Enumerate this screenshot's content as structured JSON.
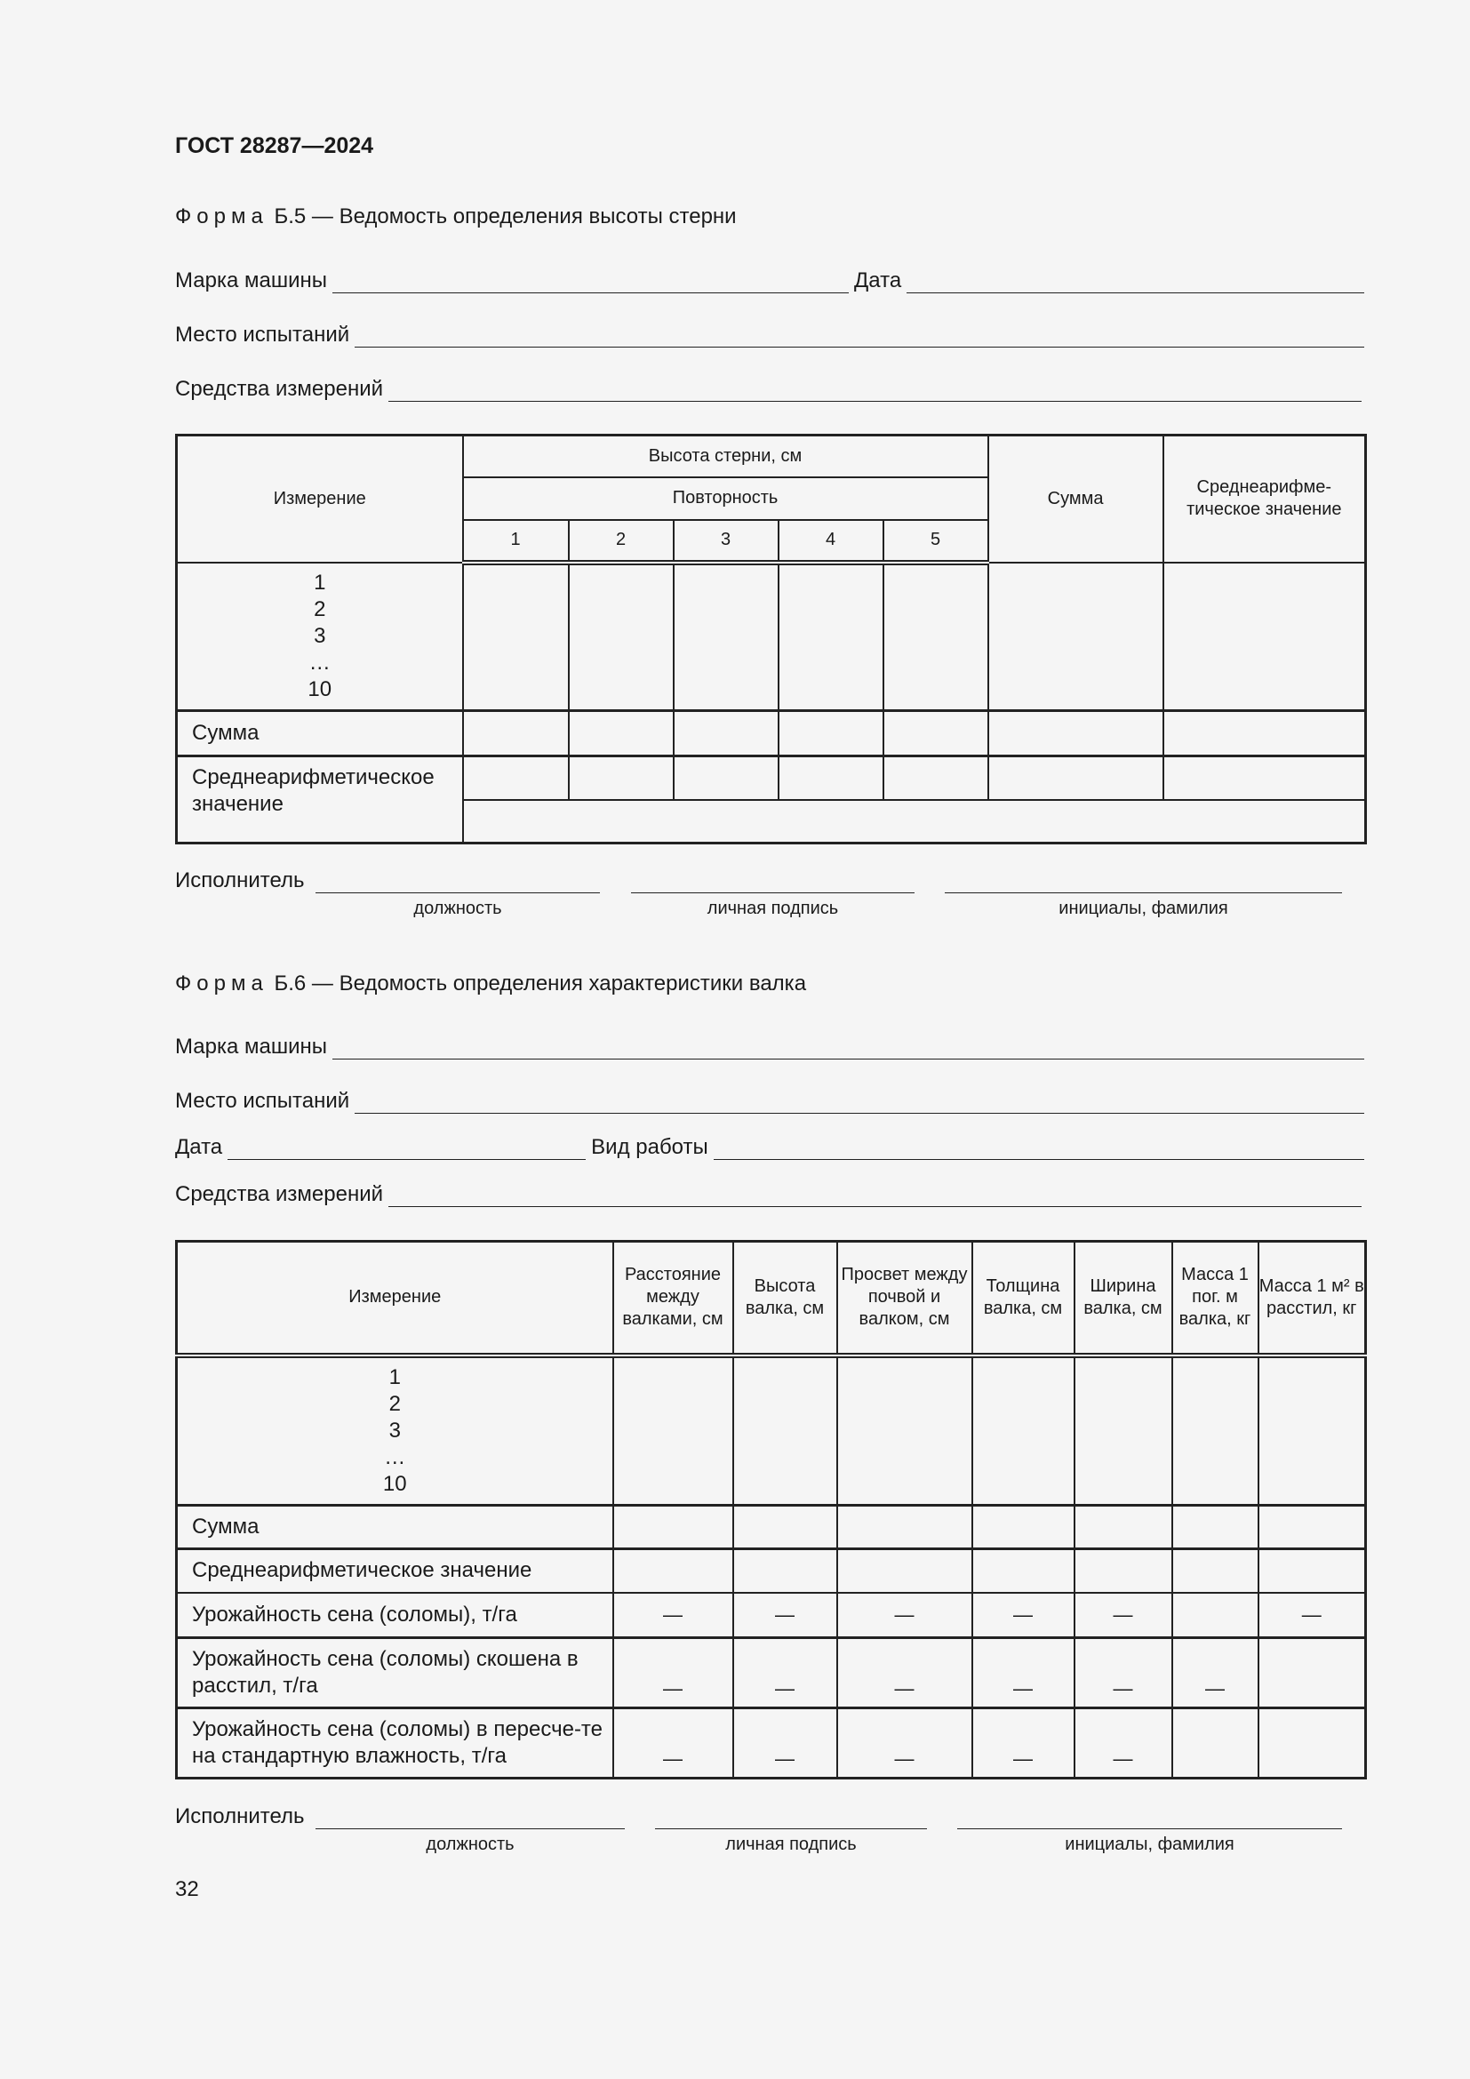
{
  "header": {
    "doc_title": "ГОСТ 28287—2024"
  },
  "form5": {
    "title_prefix": "Форма",
    "title": "Б.5 — Ведомость определения высоты стерни",
    "fields": {
      "machine": "Марка машины",
      "date": "Дата",
      "place": "Место испытаний",
      "instruments": "Средства измерений"
    },
    "table": {
      "col_measure": "Измерение",
      "group": "Высота стерни, см",
      "subgroup": "Повторность",
      "reps": [
        "1",
        "2",
        "3",
        "4",
        "5"
      ],
      "col_sum": "Сумма",
      "col_mean": "Среднеарифме-тическое значение",
      "measures": [
        "1",
        "2",
        "3",
        "…",
        "10"
      ],
      "row_sum": "Сумма",
      "row_mean": "Среднеарифметическое значение"
    },
    "signature": {
      "label": "Исполнитель",
      "captions": [
        "должность",
        "личная подпись",
        "инициалы, фамилия"
      ]
    }
  },
  "form6": {
    "title_prefix": "Форма",
    "title": "Б.6 — Ведомость определения характеристики валка",
    "fields": {
      "machine": "Марка машины",
      "place": "Место испытаний",
      "date": "Дата",
      "work": "Вид работы",
      "instruments": "Средства измерений"
    },
    "table": {
      "columns": [
        "Измерение",
        "Расстояние между валками, см",
        "Высота валка, см",
        "Просвет между почвой и валком, см",
        "Толщина валка, см",
        "Ширина валка, см",
        "Масса 1 пог. м валка, кг",
        "Масса 1 м² в расстил, кг"
      ],
      "measures": [
        "1",
        "2",
        "3",
        "…",
        "10"
      ],
      "rows": [
        {
          "label": "Сумма",
          "cells": [
            "",
            "",
            "",
            "",
            "",
            "",
            ""
          ]
        },
        {
          "label": "Среднеарифметическое значение",
          "cells": [
            "",
            "",
            "",
            "",
            "",
            "",
            ""
          ]
        },
        {
          "label": "Урожайность сена (соломы), т/га",
          "cells": [
            "—",
            "—",
            "—",
            "—",
            "—",
            "",
            "—"
          ]
        },
        {
          "label": "Урожайность сена (соломы) скошена в расстил, т/га",
          "cells": [
            "—",
            "—",
            "—",
            "—",
            "—",
            "—",
            ""
          ]
        },
        {
          "label": "Урожайность сена (соломы) в пересче-те на стандартную влажность, т/га",
          "cells": [
            "—",
            "—",
            "—",
            "—",
            "—",
            "",
            ""
          ]
        }
      ]
    },
    "signature": {
      "label": "Исполнитель",
      "captions": [
        "должность",
        "личная подпись",
        "инициалы, фамилия"
      ]
    }
  },
  "footer": {
    "page_number": "32"
  }
}
